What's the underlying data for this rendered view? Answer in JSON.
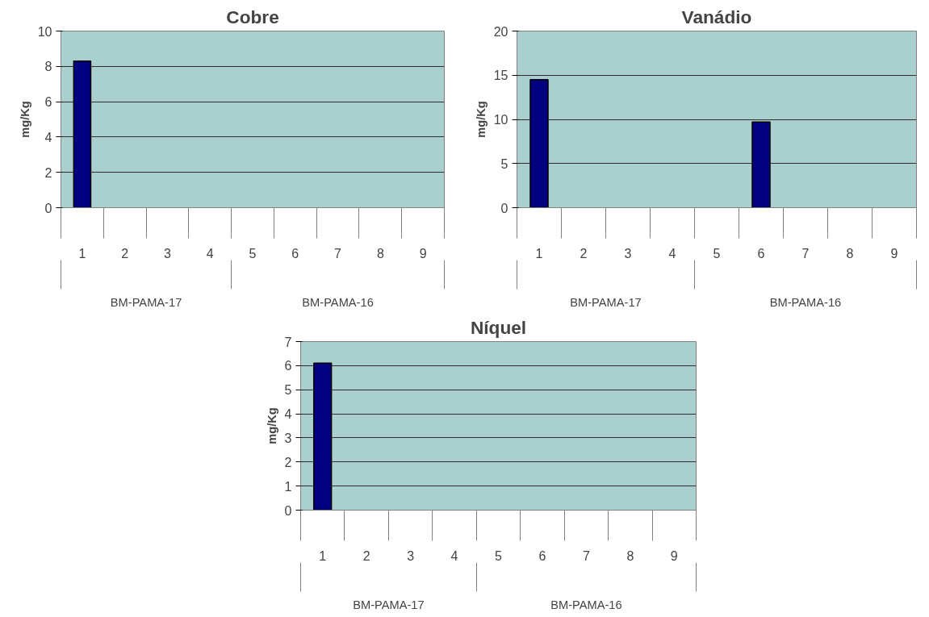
{
  "chart_data": [
    {
      "type": "bar",
      "title": "Cobre",
      "ylabel": "mg/Kg",
      "categories": [
        "1",
        "2",
        "3",
        "4",
        "5",
        "6",
        "7",
        "8",
        "9"
      ],
      "values": [
        8.3,
        null,
        null,
        null,
        null,
        null,
        null,
        null,
        null
      ],
      "color": "#000080",
      "ylim": [
        0,
        10
      ],
      "yticks": [
        0,
        2,
        4,
        6,
        8,
        10
      ],
      "grid": "y",
      "annotations": [
        "BM-PAMA-17",
        "BM-PAMA-16"
      ]
    },
    {
      "type": "bar",
      "title": "Vanádio",
      "ylabel": "mg/Kg",
      "categories": [
        "1",
        "2",
        "3",
        "4",
        "5",
        "6",
        "7",
        "8",
        "9"
      ],
      "values": [
        14.5,
        null,
        null,
        null,
        null,
        9.7,
        null,
        null,
        null
      ],
      "color": "#000080",
      "ylim": [
        0,
        20
      ],
      "yticks": [
        0,
        5,
        10,
        15,
        20
      ],
      "grid": "y",
      "annotations": [
        "BM-PAMA-17",
        "BM-PAMA-16"
      ]
    },
    {
      "type": "bar",
      "title": "Níquel",
      "ylabel": "mg/Kg",
      "categories": [
        "1",
        "2",
        "3",
        "4",
        "5",
        "6",
        "7",
        "8",
        "9"
      ],
      "values": [
        6.1,
        null,
        null,
        null,
        null,
        null,
        null,
        null,
        null
      ],
      "color": "#000080",
      "ylim": [
        0,
        7
      ],
      "yticks": [
        0,
        1,
        2,
        3,
        4,
        5,
        6,
        7
      ],
      "grid": "y",
      "annotations": [
        "BM-PAMA-17",
        "BM-PAMA-16"
      ]
    }
  ]
}
